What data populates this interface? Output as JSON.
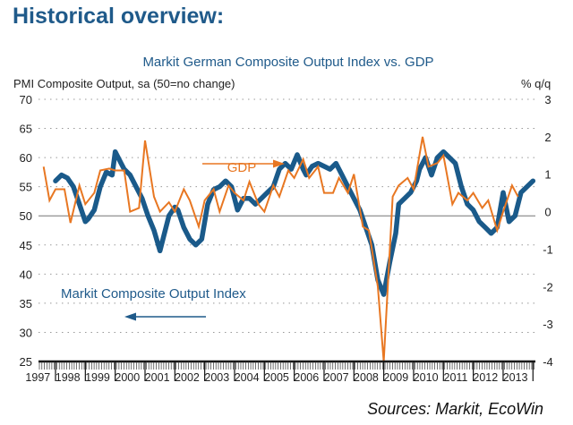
{
  "page": {
    "heading": "Historical overview:"
  },
  "chart_data": {
    "type": "line",
    "title": "Markit German Composite Output Index vs. GDP",
    "ylabel_left": "PMI Composite Output, sa (50=no change)",
    "ylabel_right": "% q/q",
    "source": "Sources: Markit, EcoWin",
    "ylim_left": [
      25,
      70
    ],
    "ylim_right": [
      -4,
      3
    ],
    "yticks_left": [
      "70",
      "65",
      "60",
      "55",
      "50",
      "45",
      "40",
      "35",
      "30",
      "25"
    ],
    "yticks_right": [
      "3",
      "2",
      "1",
      "0",
      "-1",
      "-2",
      "-3",
      "-4"
    ],
    "xlim": [
      1997.6,
      2014.2
    ],
    "xtick_labels": [
      "1997",
      "1998",
      "1999",
      "2000",
      "2001",
      "2002",
      "2003",
      "2004",
      "2005",
      "2006",
      "2007",
      "2008",
      "2009",
      "2010",
      "2011",
      "2012",
      "2013"
    ],
    "grid": "horizontal dotted",
    "reference_line": {
      "axis": "left",
      "value": 50
    },
    "annotations": [
      {
        "text": "GDP",
        "arrow": "right",
        "color": "#e87722"
      },
      {
        "text": "Markit Composite Output Index",
        "arrow": "left",
        "color": "#1f5a8a"
      }
    ],
    "series": [
      {
        "name": "Markit Composite Output Index",
        "axis": "left",
        "color": "#1a5a8a",
        "x": [
          1998.0,
          1998.2,
          1998.4,
          1998.6,
          1998.8,
          1999.0,
          1999.1,
          1999.3,
          1999.5,
          1999.7,
          1999.9,
          2000.0,
          2000.2,
          2000.3,
          2000.5,
          2000.7,
          2000.9,
          2001.1,
          2001.3,
          2001.5,
          2001.6,
          2001.8,
          2002.0,
          2002.1,
          2002.3,
          2002.5,
          2002.7,
          2002.9,
          2003.1,
          2003.3,
          2003.5,
          2003.7,
          2003.9,
          2004.1,
          2004.3,
          2004.5,
          2004.7,
          2004.9,
          2005.1,
          2005.3,
          2005.5,
          2005.7,
          2005.9,
          2006.1,
          2006.3,
          2006.4,
          2006.6,
          2006.8,
          2007.0,
          2007.2,
          2007.4,
          2007.6,
          2007.8,
          2008.0,
          2008.2,
          2008.4,
          2008.6,
          2008.8,
          2009.0,
          2009.2,
          2009.4,
          2009.5,
          2009.7,
          2009.9,
          2010.1,
          2010.2,
          2010.4,
          2010.6,
          2010.8,
          2011.0,
          2011.2,
          2011.4,
          2011.6,
          2011.8,
          2012.0,
          2012.2,
          2012.4,
          2012.6,
          2012.8,
          2013.0,
          2013.2,
          2013.4,
          2013.6,
          2013.8,
          2014.0
        ],
        "values": [
          56,
          57,
          56.5,
          55,
          52,
          49,
          49.5,
          51,
          55,
          57.5,
          57,
          61,
          59,
          58,
          57,
          55,
          53,
          50,
          47.5,
          44,
          46,
          50,
          51.5,
          51,
          48,
          46,
          45,
          46,
          52,
          54.5,
          55,
          56,
          55,
          51,
          53,
          53,
          52,
          53,
          54,
          55,
          58,
          59,
          58,
          60.5,
          58,
          57,
          58.5,
          59,
          58.5,
          58,
          59,
          57,
          55,
          53,
          51,
          48,
          45,
          39,
          36.5,
          42,
          47,
          52,
          53,
          54,
          56,
          58,
          60,
          57,
          60,
          61,
          60,
          59,
          55,
          52,
          51,
          49,
          48,
          47,
          48,
          54,
          49,
          50,
          54,
          55,
          56
        ]
      },
      {
        "name": "GDP",
        "axis": "right",
        "color": "#e87722",
        "x": [
          1997.6,
          1997.8,
          1998.0,
          1998.3,
          1998.5,
          1998.8,
          1999.0,
          1999.3,
          1999.5,
          1999.8,
          2000.0,
          2000.3,
          2000.5,
          2000.8,
          2001.0,
          2001.3,
          2001.5,
          2001.8,
          2002.0,
          2002.3,
          2002.5,
          2002.8,
          2003.0,
          2003.3,
          2003.5,
          2003.8,
          2004.0,
          2004.3,
          2004.5,
          2004.8,
          2005.0,
          2005.3,
          2005.5,
          2005.8,
          2006.0,
          2006.3,
          2006.5,
          2006.8,
          2007.0,
          2007.3,
          2007.5,
          2007.8,
          2008.0,
          2008.3,
          2008.5,
          2008.8,
          2009.0,
          2009.3,
          2009.5,
          2009.8,
          2010.0,
          2010.3,
          2010.5,
          2010.8,
          2011.0,
          2011.3,
          2011.5,
          2011.8,
          2012.0,
          2012.3,
          2012.5,
          2012.8,
          2013.0,
          2013.3,
          2013.5
        ],
        "values": [
          1.2,
          0.3,
          0.6,
          0.6,
          -0.3,
          0.7,
          0.2,
          0.5,
          1.1,
          1.15,
          1.1,
          1.1,
          0.0,
          0.1,
          1.9,
          0.4,
          0.0,
          0.25,
          0.0,
          0.6,
          0.3,
          -0.4,
          0.3,
          0.6,
          0.0,
          0.7,
          0.5,
          0.3,
          0.8,
          0.2,
          0.0,
          0.7,
          0.4,
          1.1,
          0.9,
          1.4,
          0.9,
          1.2,
          0.5,
          0.5,
          0.9,
          0.5,
          1.0,
          -0.4,
          -0.5,
          -2.0,
          -4.0,
          0.4,
          0.7,
          0.9,
          0.6,
          2.0,
          1.2,
          1.3,
          1.5,
          0.2,
          0.5,
          0.3,
          0.5,
          0.1,
          0.3,
          -0.5,
          0.0,
          0.7,
          0.4
        ]
      }
    ]
  }
}
